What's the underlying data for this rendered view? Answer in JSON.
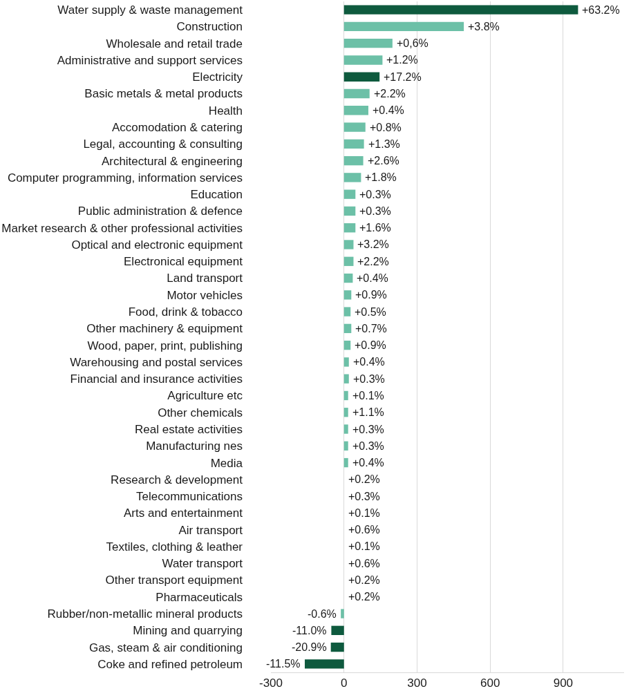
{
  "chart_data": {
    "type": "bar",
    "orientation": "horizontal",
    "categories": [
      "Water supply & waste management",
      "Construction",
      "Wholesale and retail trade",
      "Administrative and support services",
      "Electricity",
      "Basic metals & metal products",
      "Health",
      "Accomodation & catering",
      "Legal, accounting & consulting",
      "Architectural & engineering",
      "Computer programming, information services",
      "Education",
      "Public administration & defence",
      "Market research & other professional activities",
      "Optical and electronic equipment",
      "Electronical equipment",
      "Land transport",
      "Motor vehicles",
      "Food, drink & tobacco",
      "Other machinery & equipment",
      "Wood, paper, print, publishing",
      "Warehousing and postal services",
      "Financial and insurance activities",
      "Agriculture etc",
      "Other chemicals",
      "Real estate activities",
      "Manufacturing nes",
      "Media",
      "Research & development",
      "Telecommunications",
      "Arts and entertainment",
      "Air transport",
      "Textiles, clothing & leather",
      "Water transport",
      "Other transport equipment",
      "Pharmaceuticals",
      "Rubber/non-metallic mineral products",
      "Mining and quarrying",
      "Gas, steam & air conditioning",
      "Coke and refined petroleum"
    ],
    "values": [
      961,
      492,
      199,
      158,
      146,
      105,
      100,
      88,
      82,
      79,
      70,
      47,
      47,
      47,
      39,
      39,
      36,
      30,
      27,
      30,
      27,
      20,
      20,
      17,
      17,
      17,
      17,
      17,
      0,
      0,
      0,
      0,
      0,
      0,
      0,
      0,
      -13,
      -52,
      -54,
      -161
    ],
    "colors": [
      "#0e5a3e",
      "#6cc0a7",
      "#6cc0a7",
      "#6cc0a7",
      "#0e5a3e",
      "#6cc0a7",
      "#6cc0a7",
      "#6cc0a7",
      "#6cc0a7",
      "#6cc0a7",
      "#6cc0a7",
      "#6cc0a7",
      "#6cc0a7",
      "#6cc0a7",
      "#6cc0a7",
      "#6cc0a7",
      "#6cc0a7",
      "#6cc0a7",
      "#6cc0a7",
      "#6cc0a7",
      "#6cc0a7",
      "#6cc0a7",
      "#6cc0a7",
      "#6cc0a7",
      "#6cc0a7",
      "#6cc0a7",
      "#6cc0a7",
      "#6cc0a7",
      "#6cc0a7",
      "#6cc0a7",
      "#6cc0a7",
      "#6cc0a7",
      "#6cc0a7",
      "#6cc0a7",
      "#6cc0a7",
      "#6cc0a7",
      "#6cc0a7",
      "#0e5a3e",
      "#0e5a3e",
      "#0e5a3e"
    ],
    "annotations": [
      "+63.2%",
      "+3.8%",
      "+0,6%",
      "+1.2%",
      "+17.2%",
      "+2.2%",
      "+0.4%",
      "+0.8%",
      "+1.3%",
      "+2.6%",
      "+1.8%",
      "+0.3%",
      "+0.3%",
      "+1.6%",
      "+3.2%",
      "+2.2%",
      "+0.4%",
      "+0.9%",
      "+0.5%",
      "+0.7%",
      "+0.9%",
      "+0.4%",
      "+0.3%",
      "+0.1%",
      "+1.1%",
      "+0.3%",
      "+0.3%",
      "+0.4%",
      "+0.2%",
      "+0.3%",
      "+0.1%",
      "+0.6%",
      "+0.1%",
      "+0.6%",
      "+0.2%",
      "+0.2%",
      "-0.6%",
      "-11.0%",
      "-20.9%",
      "-11.5%"
    ],
    "xlim": [
      -300,
      1150
    ],
    "xticks": [
      -300,
      0,
      300,
      600,
      900
    ],
    "grid": "x"
  }
}
